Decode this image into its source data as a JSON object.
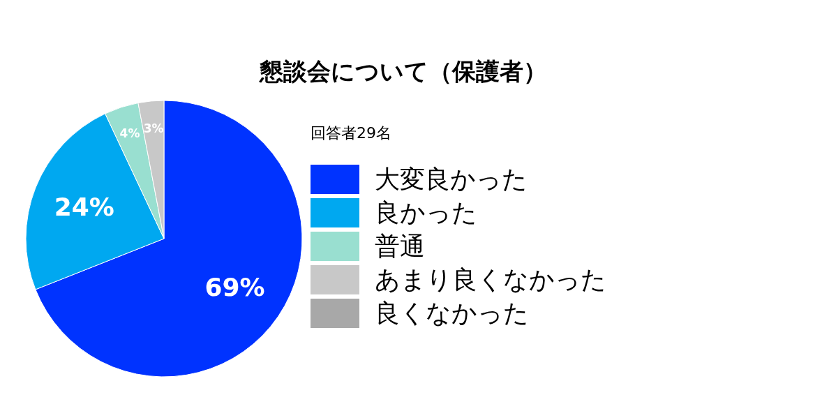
{
  "chart_data": {
    "type": "pie",
    "title": "懇談会について（保護者）",
    "annotations": [
      "回答者29名"
    ],
    "categories": [
      "大変良かった",
      "良かった",
      "普通",
      "あまり良くなかった",
      "良くなかった"
    ],
    "values": [
      69,
      24,
      4,
      3,
      0
    ],
    "colors": [
      "#0033ff",
      "#00a8f0",
      "#99dfd0",
      "#c8c8c8",
      "#a8a8a8"
    ],
    "value_labels": [
      "69%",
      "24%",
      "4%",
      "3%",
      null
    ],
    "legend": "right"
  }
}
